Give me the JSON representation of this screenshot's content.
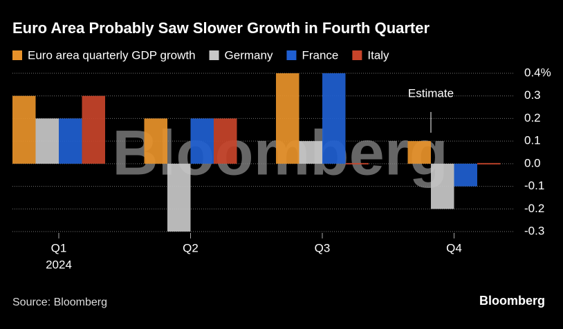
{
  "chart_data": {
    "type": "bar",
    "title": "Euro Area Probably Saw Slower Growth in Fourth Quarter",
    "categories": [
      "Q1",
      "Q2",
      "Q3",
      "Q4"
    ],
    "year": "2024",
    "series": [
      {
        "name": "Euro area quarterly GDP growth",
        "color": "#e8922a",
        "values": [
          0.3,
          0.2,
          0.4,
          0.1
        ]
      },
      {
        "name": "Germany",
        "color": "#c8c8c8",
        "values": [
          0.2,
          -0.3,
          0.1,
          -0.2
        ]
      },
      {
        "name": "France",
        "color": "#1f5fd1",
        "values": [
          0.2,
          0.2,
          0.4,
          -0.1
        ]
      },
      {
        "name": "Italy",
        "color": "#c8442a",
        "values": [
          0.3,
          0.2,
          0.0,
          0.0
        ]
      }
    ],
    "ylim": [
      -0.3,
      0.4
    ],
    "yticks": [
      {
        "value": 0.4,
        "label": "0.4%"
      },
      0.3,
      0.2,
      0.1,
      {
        "value": 0,
        "label": "0.0"
      },
      -0.1,
      -0.2,
      -0.3
    ],
    "grid": true,
    "annotation": "Estimate",
    "watermark": "Bloomberg",
    "source": "Source: Bloomberg",
    "logo": "Bloomberg"
  }
}
